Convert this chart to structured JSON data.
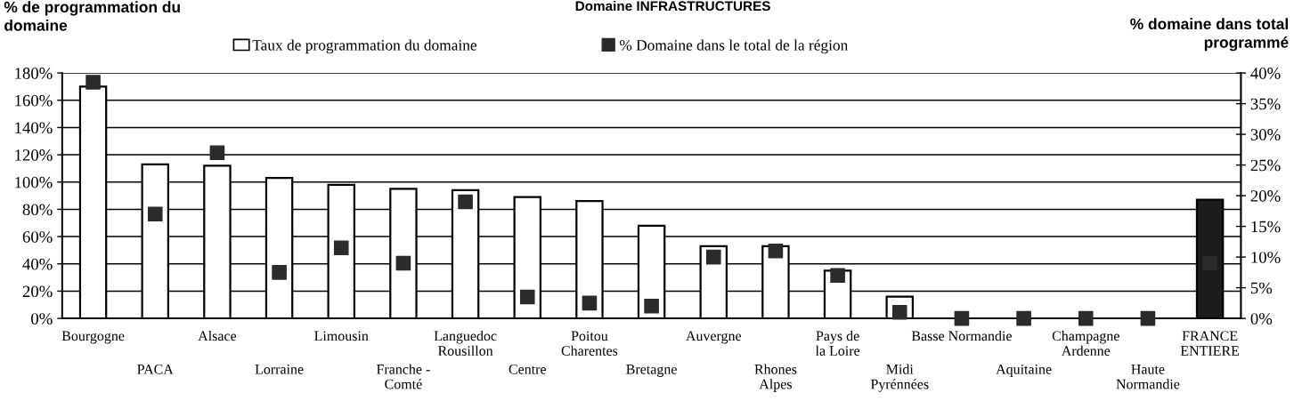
{
  "chart_data": {
    "type": "bar",
    "title": "Domaine INFRASTRUCTURES",
    "ylabel": "% de programmation du\ndomaine",
    "y2label": "% domaine dans total\nprogrammé",
    "categories": [
      "Bourgogne",
      "PACA",
      "Alsace",
      "Lorraine",
      "Limousin",
      "Franche -\nComté",
      "Languedoc\nRousillon",
      "Centre",
      "Poitou\nCharentes",
      "Bretagne",
      "Auvergne",
      "Rhones\nAlpes",
      "Pays de\nla Loire",
      "Midi\nPyrénnées",
      "Basse Normandie",
      "Aquitaine",
      "Champagne\nArdenne",
      "Haute\nNormandie",
      "FRANCE\nENTIERE"
    ],
    "series": [
      {
        "name": "Taux de programmation du domaine",
        "color": "#ffffff",
        "colors": [
          "#ffffff",
          "#ffffff",
          "#ffffff",
          "#ffffff",
          "#ffffff",
          "#ffffff",
          "#ffffff",
          "#ffffff",
          "#ffffff",
          "#ffffff",
          "#ffffff",
          "#ffffff",
          "#ffffff",
          "#ffffff",
          "#ffffff",
          "#ffffff",
          "#ffffff",
          "#ffffff",
          "#1c1c1c"
        ],
        "values": [
          170,
          113,
          112,
          103,
          98,
          95,
          94,
          89,
          86,
          68,
          53,
          53,
          35,
          16,
          0,
          0,
          0,
          0,
          87
        ]
      },
      {
        "name": "% Domaine dans le total de la région",
        "type": "scatter",
        "axis": "y2",
        "marker": "square",
        "color": "#2b2b2b",
        "values": [
          38.5,
          17,
          27,
          7.5,
          11.5,
          9,
          19,
          3.5,
          2.5,
          2,
          10,
          11,
          7,
          1,
          0,
          0,
          0,
          0,
          9
        ]
      }
    ],
    "ylim": [
      0,
      180
    ],
    "yticks": [
      {
        "value": 0,
        "label": "0%"
      },
      {
        "value": 20,
        "label": "20%"
      },
      {
        "value": 40,
        "label": "40%"
      },
      {
        "value": 60,
        "label": "60%"
      },
      {
        "value": 80,
        "label": "80%"
      },
      {
        "value": 100,
        "label": "100%"
      },
      {
        "value": 120,
        "label": "120%"
      },
      {
        "value": 140,
        "label": "140%"
      },
      {
        "value": 160,
        "label": "160%"
      },
      {
        "value": 180,
        "label": "180%"
      }
    ],
    "y2lim": [
      0,
      40
    ],
    "y2ticks": [
      {
        "value": 0,
        "label": "0%"
      },
      {
        "value": 5,
        "label": "5%"
      },
      {
        "value": 10,
        "label": "10%"
      },
      {
        "value": 15,
        "label": "15%"
      },
      {
        "value": 20,
        "label": "20%"
      },
      {
        "value": 25,
        "label": "25%"
      },
      {
        "value": 30,
        "label": "30%"
      },
      {
        "value": 35,
        "label": "35%"
      },
      {
        "value": 40,
        "label": "40%"
      }
    ],
    "grid": "y",
    "legend": "top"
  }
}
